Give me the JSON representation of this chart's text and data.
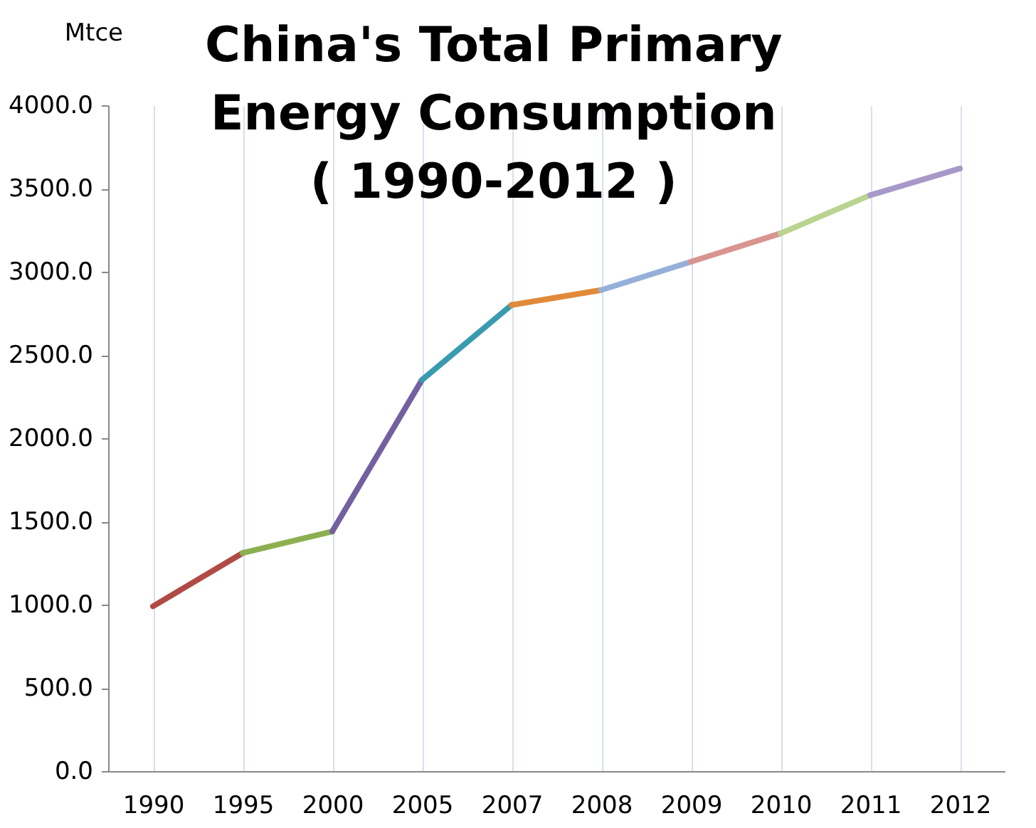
{
  "chart_data": {
    "type": "line",
    "title": "China's Total Primary\nEnergy Consumption\n( 1990-2012 )",
    "ylabel": "Mtce",
    "categories": [
      "1990",
      "1995",
      "2000",
      "2005",
      "2007",
      "2008",
      "2009",
      "2010",
      "2011",
      "2012"
    ],
    "series": [
      {
        "color": "#b04a45",
        "values": [
          990,
          1310,
          null,
          null,
          null,
          null,
          null,
          null,
          null,
          null
        ]
      },
      {
        "color": "#8cb050",
        "values": [
          null,
          1310,
          1440,
          null,
          null,
          null,
          null,
          null,
          null,
          null
        ]
      },
      {
        "color": "#7360a0",
        "values": [
          null,
          null,
          1440,
          2350,
          null,
          null,
          null,
          null,
          null,
          null
        ]
      },
      {
        "color": "#3a9ab0",
        "values": [
          null,
          null,
          null,
          2350,
          2800,
          null,
          null,
          null,
          null,
          null
        ]
      },
      {
        "color": "#e08a3a",
        "values": [
          null,
          null,
          null,
          null,
          2800,
          2890,
          null,
          null,
          null,
          null
        ]
      },
      {
        "color": "#95b0d8",
        "values": [
          null,
          null,
          null,
          null,
          null,
          2890,
          3060,
          null,
          null,
          null
        ]
      },
      {
        "color": "#d89590",
        "values": [
          null,
          null,
          null,
          null,
          null,
          null,
          3060,
          3230,
          null,
          null
        ]
      },
      {
        "color": "#b8d490",
        "values": [
          null,
          null,
          null,
          null,
          null,
          null,
          null,
          3230,
          3460,
          null
        ]
      },
      {
        "color": "#a898c8",
        "values": [
          null,
          null,
          null,
          null,
          null,
          null,
          null,
          null,
          3460,
          3620
        ]
      }
    ],
    "ylim": [
      0,
      4000
    ],
    "yticks": [
      {
        "value": 0,
        "label": "0.0"
      },
      {
        "value": 500,
        "label": "500.0"
      },
      {
        "value": 1000,
        "label": "1000.0"
      },
      {
        "value": 1500,
        "label": "1500.0"
      },
      {
        "value": 2000,
        "label": "2000.0"
      },
      {
        "value": 2500,
        "label": "2500.0"
      },
      {
        "value": 3000,
        "label": "3000.0"
      },
      {
        "value": 3500,
        "label": "3500.0"
      },
      {
        "value": 4000,
        "label": "4000.0"
      }
    ],
    "grid": "x",
    "legend": false,
    "marker": "none",
    "line_style": "solid"
  }
}
